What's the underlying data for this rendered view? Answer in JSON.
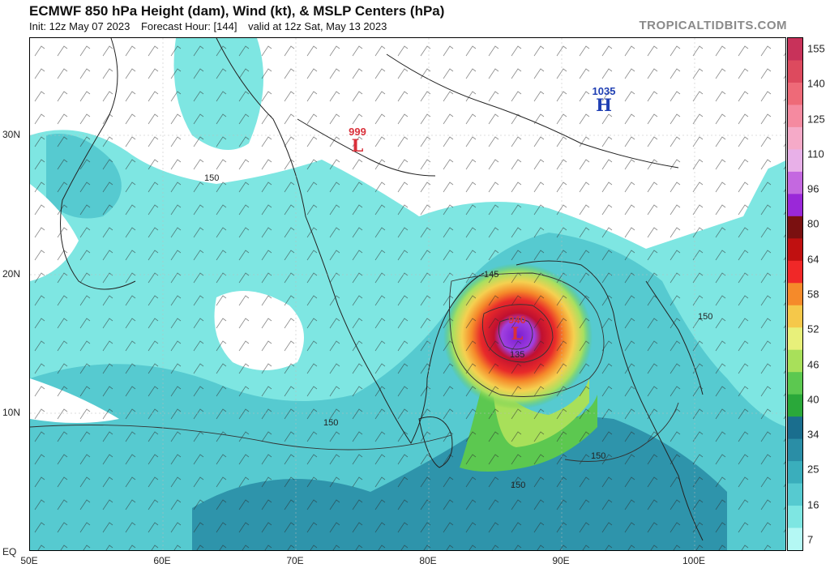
{
  "header": {
    "title": "ECMWF 850 hPa Height (dam), Wind (kt), & MSLP Centers (hPa)",
    "init": "Init: 12z May 07 2023",
    "forecast_hour": "Forecast Hour: [144]",
    "valid": "valid at 12z Sat, May 13 2023",
    "brand": "TROPICALTIDBITS.COM"
  },
  "map": {
    "lat_labels": [
      "30N",
      "20N",
      "10N",
      "EQ"
    ],
    "lon_labels": [
      "50E",
      "60E",
      "70E",
      "80E",
      "90E",
      "100E"
    ],
    "pressure_centers": [
      {
        "value": "999",
        "symbol": "L",
        "color": "#d9303a"
      },
      {
        "value": "1035",
        "symbol": "H",
        "color": "#1f3fb3"
      },
      {
        "value": "940",
        "symbol": "L",
        "color": "#d9303a"
      }
    ],
    "contour_labels": [
      "150",
      "145",
      "135",
      "150",
      "150",
      "150",
      "150"
    ]
  },
  "colorbar": {
    "ticks": [
      "155",
      "140",
      "125",
      "110",
      "96",
      "80",
      "64",
      "58",
      "52",
      "46",
      "40",
      "34",
      "25",
      "16",
      "7"
    ],
    "colors": [
      "#c8325a",
      "#dd4a5e",
      "#ee6a78",
      "#f58aa0",
      "#f5aac8",
      "#e8b0e8",
      "#c468e0",
      "#9a28d8",
      "#7a1010",
      "#c01010",
      "#f02828",
      "#f58a2a",
      "#f5c84a",
      "#e8f07a",
      "#a8e05a",
      "#5cc850",
      "#2aa83a",
      "#1a6e8e",
      "#2a8ea6",
      "#3aaebc",
      "#56cad0",
      "#7ee6e2",
      "#b4f8f4"
    ]
  }
}
